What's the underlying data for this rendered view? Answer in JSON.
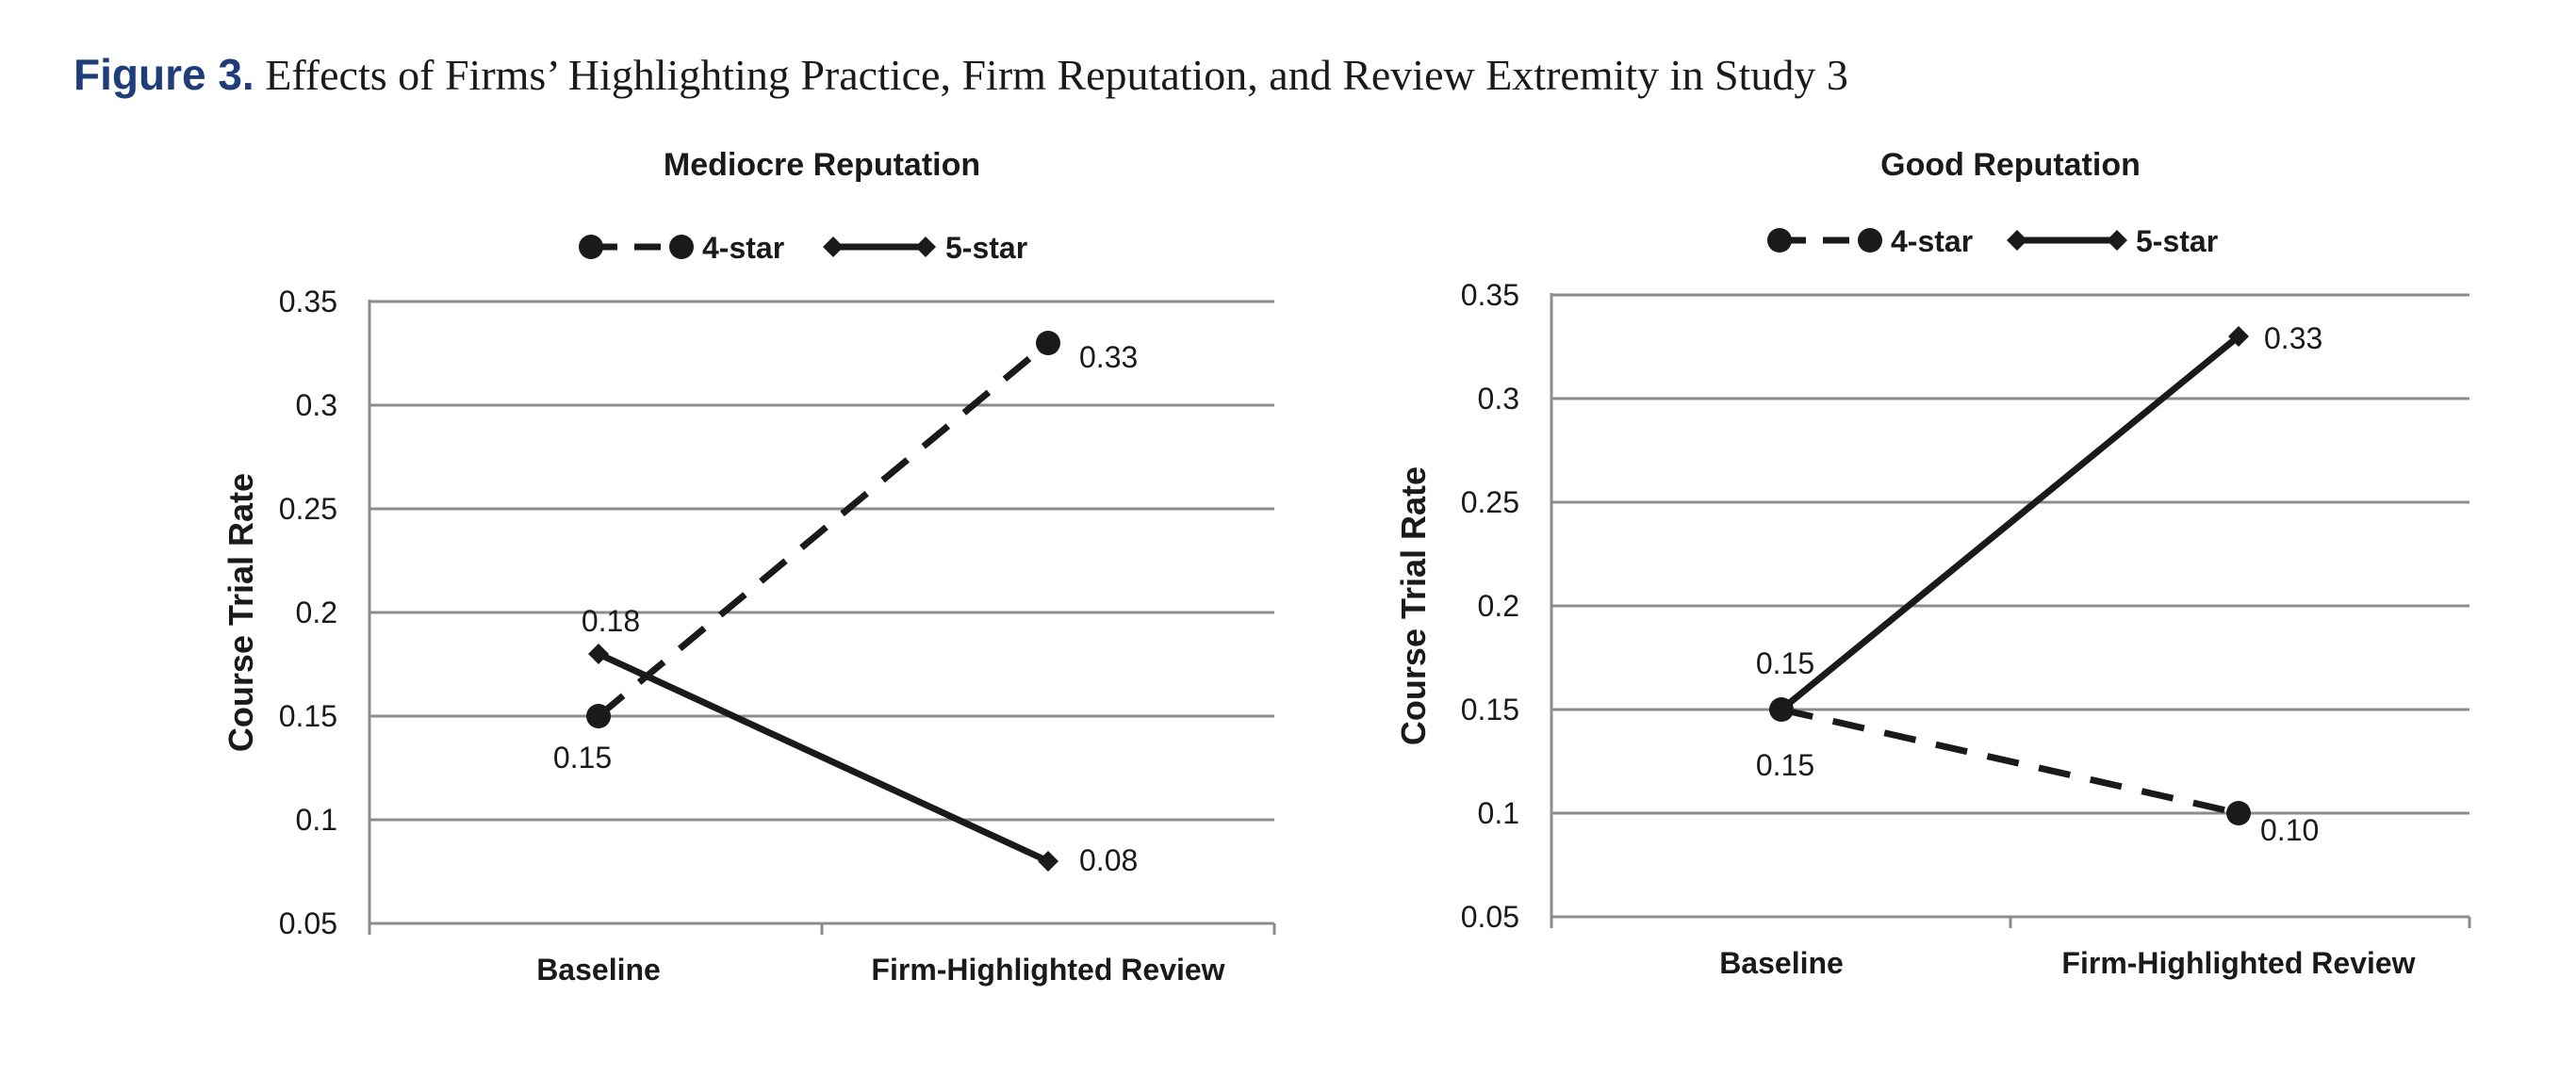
{
  "caption": {
    "label": "Figure 3.",
    "text": "Effects of Firms’ Highlighting Practice, Firm Reputation, and Review Extremity in Study 3"
  },
  "chart_data": [
    {
      "type": "line",
      "title": "Mediocre Reputation",
      "ylabel": "Course Trial Rate",
      "xlabel": "",
      "categories": [
        "Baseline",
        "Firm-Highlighted Review"
      ],
      "yticks": [
        "0.05",
        "0.1",
        "0.15",
        "0.2",
        "0.25",
        "0.3",
        "0.35"
      ],
      "ylim": [
        0.05,
        0.35
      ],
      "grid": true,
      "legend": "top-center",
      "series": [
        {
          "name": "4-star",
          "style": "dashed",
          "marker": "circle",
          "values": [
            0.15,
            0.33
          ],
          "labels": [
            "0.15",
            "0.33"
          ]
        },
        {
          "name": "5-star",
          "style": "solid",
          "marker": "diamond",
          "values": [
            0.18,
            0.08
          ],
          "labels": [
            "0.18",
            "0.08"
          ]
        }
      ]
    },
    {
      "type": "line",
      "title": "Good Reputation",
      "ylabel": "Course Trial Rate",
      "xlabel": "",
      "categories": [
        "Baseline",
        "Firm-Highlighted Review"
      ],
      "yticks": [
        "0.05",
        "0.1",
        "0.15",
        "0.2",
        "0.25",
        "0.3",
        "0.35"
      ],
      "ylim": [
        0.05,
        0.35
      ],
      "grid": true,
      "legend": "top-center",
      "series": [
        {
          "name": "4-star",
          "style": "dashed",
          "marker": "circle",
          "values": [
            0.15,
            0.1
          ],
          "labels": [
            "0.15",
            "0.10"
          ]
        },
        {
          "name": "5-star",
          "style": "solid",
          "marker": "diamond",
          "values": [
            0.15,
            0.33
          ],
          "labels": [
            "0.15",
            "0.33"
          ]
        }
      ]
    }
  ],
  "colors": {
    "line": "#1a1a1a",
    "grid": "#8c8c8c",
    "caption_label": "#1f3d78"
  }
}
